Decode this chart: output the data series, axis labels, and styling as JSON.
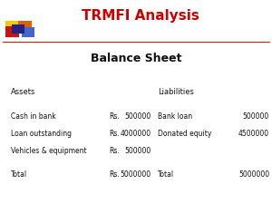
{
  "title": "TRMFI Analysis",
  "subtitle": "Balance Sheet",
  "bg_color": "#ffffff",
  "title_color": "#cc0000",
  "title_fontsize": 11,
  "subtitle_fontsize": 9,
  "assets_header": "Assets",
  "liabilities_header": "Liabilities",
  "assets": [
    {
      "label": "Cash in bank",
      "prefix": "Rs.",
      "amount": "500000"
    },
    {
      "label": "Loan outstanding",
      "prefix": "Rs.",
      "amount": "4000000"
    },
    {
      "label": "Vehicles & equipment",
      "prefix": "Rs.",
      "amount": "500000"
    }
  ],
  "liabilities": [
    {
      "label": "Bank loan",
      "amount": "500000"
    },
    {
      "label": "Donated equity",
      "amount": "4500000"
    }
  ],
  "assets_total_label": "Total",
  "assets_total_prefix": "Rs.",
  "assets_total_amount": "5000000",
  "liabilities_total_label": "Total",
  "liabilities_total_amount": "5000000",
  "text_fontsize": 5.5,
  "header_col_fontsize": 6.0,
  "logo_yellow": "#f5c800",
  "logo_orange": "#e06000",
  "logo_red": "#cc1111",
  "logo_darkblue": "#222288",
  "logo_blue": "#4466cc",
  "line_color": "#cc2200"
}
